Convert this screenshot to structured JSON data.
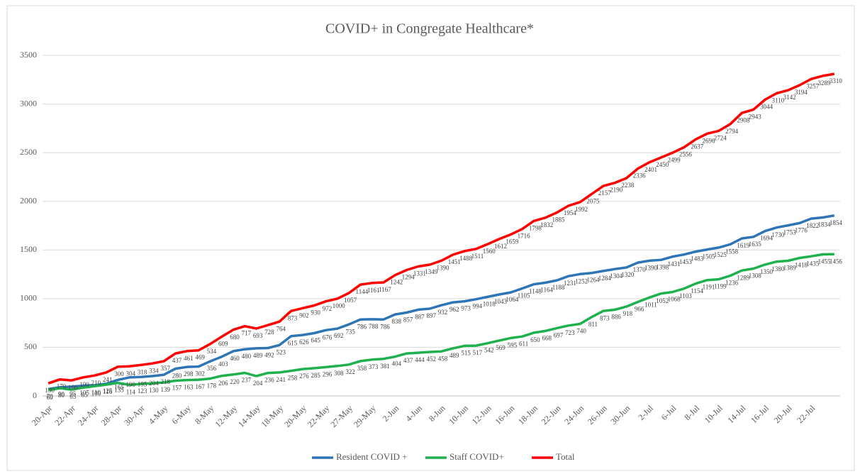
{
  "chart_data": {
    "type": "line",
    "title": "COVID+ in Congregate Healthcare*",
    "categories": [
      "20-Apr",
      null,
      "22-Apr",
      null,
      "24-Apr",
      null,
      "28-Apr",
      null,
      "30-Apr",
      null,
      "4-May",
      null,
      "6-May",
      null,
      "8-May",
      null,
      "12-May",
      null,
      "14-May",
      null,
      "18-May",
      null,
      "20-May",
      null,
      "22-May",
      null,
      "27-May",
      null,
      "29-May",
      null,
      "2-Jun",
      null,
      "4-Jun",
      null,
      "8-Jun",
      null,
      "10-Jun",
      null,
      "12-Jun",
      null,
      "16-Jun",
      null,
      "18-Jun",
      null,
      "22-Jun",
      null,
      "24-Jun",
      null,
      "26-Jun",
      null,
      "30-Jun",
      null,
      "2-Jul",
      null,
      "6-Jul",
      null,
      "8-Jul",
      null,
      "10-Jul",
      null,
      "14-Jul",
      null,
      "16-Jul",
      null,
      "20-Jul",
      null,
      "22-Jul",
      null,
      null
    ],
    "series": [
      {
        "name": "Resident COVID +",
        "color": "#2e75b6",
        "values": [
          70,
          90,
          95,
          105,
          110,
          125,
          165,
          190,
          195,
          204,
          218,
          280,
          298,
          302,
          356,
          403,
          460,
          480,
          489,
          492,
          523,
          615,
          626,
          645,
          676,
          692,
          735,
          786,
          788,
          786,
          838,
          857,
          887,
          897,
          932,
          962,
          973,
          994,
          1018,
          1043,
          1064,
          1105,
          1148,
          1164,
          1188,
          1231,
          1252,
          1264,
          1284,
          1304,
          1320,
          1370,
          1390,
          1398,
          1431,
          1453,
          1483,
          1505,
          1525,
          1558,
          1619,
          1635,
          1694,
          1730,
          1753,
          1776,
          1822,
          1834,
          1854
        ]
      },
      {
        "name": "Staff COVID+",
        "color": "#1fb14e",
        "values": [
          60,
          80,
          65,
          85,
          100,
          116,
          135,
          114,
          123,
          130,
          139,
          157,
          163,
          167,
          178,
          206,
          220,
          237,
          204,
          236,
          241,
          258,
          276,
          285,
          296,
          308,
          322,
          358,
          373,
          381,
          404,
          437,
          444,
          452,
          458,
          489,
          515,
          517,
          542,
          569,
          595,
          611,
          650,
          668,
          697,
          723,
          740,
          811,
          873,
          886,
          918,
          966,
          1011,
          1052,
          1068,
          1103,
          1154,
          1191,
          1199,
          1236,
          1289,
          1308,
          1350,
          1380,
          1389,
          1418,
          1435,
          1455,
          1456
        ]
      },
      {
        "name": "Total",
        "color": "#ff0000",
        "values": [
          130,
          170,
          160,
          190,
          210,
          241,
          300,
          304,
          318,
          334,
          357,
          437,
          461,
          469,
          534,
          609,
          680,
          717,
          693,
          728,
          764,
          873,
          902,
          930,
          972,
          1000,
          1057,
          1144,
          1161,
          1167,
          1242,
          1294,
          1331,
          1349,
          1390,
          1451,
          1488,
          1511,
          1560,
          1612,
          1659,
          1716,
          1798,
          1832,
          1885,
          1954,
          1992,
          2075,
          2157,
          2190,
          2238,
          2336,
          2401,
          2450,
          2499,
          2556,
          2637,
          2696,
          2724,
          2794,
          2908,
          2943,
          3044,
          3110,
          3142,
          3194,
          3257,
          3289,
          3310
        ]
      }
    ],
    "ylim": [
      0,
      3500
    ],
    "yticks": [
      0,
      500,
      1000,
      1500,
      2000,
      2500,
      3000,
      3500
    ],
    "grid": true,
    "legend": "bottom"
  }
}
